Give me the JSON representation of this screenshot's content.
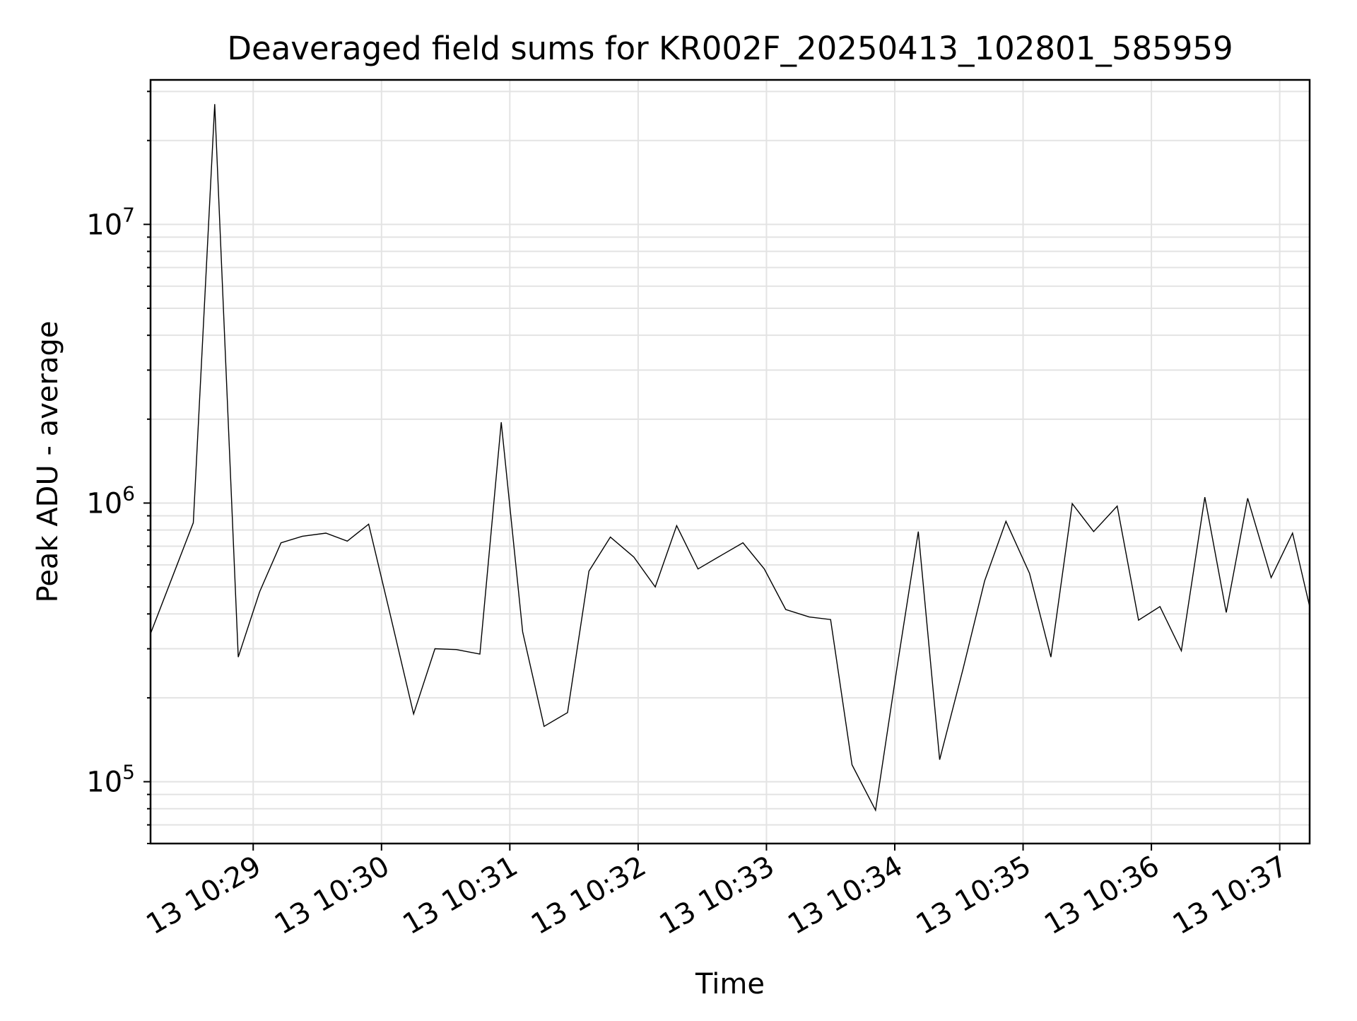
{
  "chart_data": {
    "type": "line",
    "title": "Deaveraged field sums for KR002F_20250413_102801_585959",
    "xlabel": "Time",
    "ylabel": "Peak ADU - average",
    "yscale": "log",
    "grid": true,
    "line_color": "#000000",
    "grid_color": "#e3e3e3",
    "xlim": [
      "2025-04-13 10:28:12",
      "2025-04-13 10:37:14"
    ],
    "ylim": [
      60000,
      33000000
    ],
    "x_ticks": [
      {
        "value": "2025-04-13 10:29:00",
        "label": "13 10:29"
      },
      {
        "value": "2025-04-13 10:30:00",
        "label": "13 10:30"
      },
      {
        "value": "2025-04-13 10:31:00",
        "label": "13 10:31"
      },
      {
        "value": "2025-04-13 10:32:00",
        "label": "13 10:32"
      },
      {
        "value": "2025-04-13 10:33:00",
        "label": "13 10:33"
      },
      {
        "value": "2025-04-13 10:34:00",
        "label": "13 10:34"
      },
      {
        "value": "2025-04-13 10:35:00",
        "label": "13 10:35"
      },
      {
        "value": "2025-04-13 10:36:00",
        "label": "13 10:36"
      },
      {
        "value": "2025-04-13 10:37:00",
        "label": "13 10:37"
      }
    ],
    "y_ticks": [
      {
        "value": 100000,
        "base": "10",
        "exp": "5"
      },
      {
        "value": 1000000,
        "base": "10",
        "exp": "6"
      },
      {
        "value": 10000000,
        "base": "10",
        "exp": "7"
      }
    ],
    "series": [
      {
        "x": [
          "2025-04-13 10:28:12",
          "2025-04-13 10:28:32",
          "2025-04-13 10:28:42",
          "2025-04-13 10:28:53",
          "2025-04-13 10:29:03",
          "2025-04-13 10:29:13",
          "2025-04-13 10:29:23",
          "2025-04-13 10:29:34",
          "2025-04-13 10:29:44",
          "2025-04-13 10:29:54",
          "2025-04-13 10:30:04",
          "2025-04-13 10:30:15",
          "2025-04-13 10:30:25",
          "2025-04-13 10:30:35",
          "2025-04-13 10:30:46",
          "2025-04-13 10:30:56",
          "2025-04-13 10:31:06",
          "2025-04-13 10:31:16",
          "2025-04-13 10:31:27",
          "2025-04-13 10:31:37",
          "2025-04-13 10:31:47",
          "2025-04-13 10:31:58",
          "2025-04-13 10:32:08",
          "2025-04-13 10:32:18",
          "2025-04-13 10:32:28",
          "2025-04-13 10:32:39",
          "2025-04-13 10:32:49",
          "2025-04-13 10:32:59",
          "2025-04-13 10:33:09",
          "2025-04-13 10:33:20",
          "2025-04-13 10:33:30",
          "2025-04-13 10:33:40",
          "2025-04-13 10:33:51",
          "2025-04-13 10:34:01",
          "2025-04-13 10:34:11",
          "2025-04-13 10:34:21",
          "2025-04-13 10:34:32",
          "2025-04-13 10:34:42",
          "2025-04-13 10:34:52",
          "2025-04-13 10:35:03",
          "2025-04-13 10:35:13",
          "2025-04-13 10:35:23",
          "2025-04-13 10:35:33",
          "2025-04-13 10:35:44",
          "2025-04-13 10:35:54",
          "2025-04-13 10:36:04",
          "2025-04-13 10:36:14",
          "2025-04-13 10:36:25",
          "2025-04-13 10:36:35",
          "2025-04-13 10:36:45",
          "2025-04-13 10:36:56",
          "2025-04-13 10:37:06",
          "2025-04-13 10:37:14"
        ],
        "y": [
          340000,
          850000,
          27000000,
          280000,
          480000,
          720000,
          760000,
          780000,
          730000,
          840000,
          400000,
          175000,
          300000,
          298000,
          287000,
          1950000,
          345000,
          158000,
          177000,
          570000,
          755000,
          640000,
          500000,
          830000,
          580000,
          650000,
          720000,
          580000,
          415000,
          390000,
          382000,
          115000,
          79000,
          255000,
          790000,
          120000,
          255000,
          525000,
          860000,
          560000,
          280000,
          995000,
          790000,
          975000,
          380000,
          425000,
          295000,
          1050000,
          405000,
          1040000,
          540000,
          780000,
          425000
        ]
      }
    ]
  }
}
